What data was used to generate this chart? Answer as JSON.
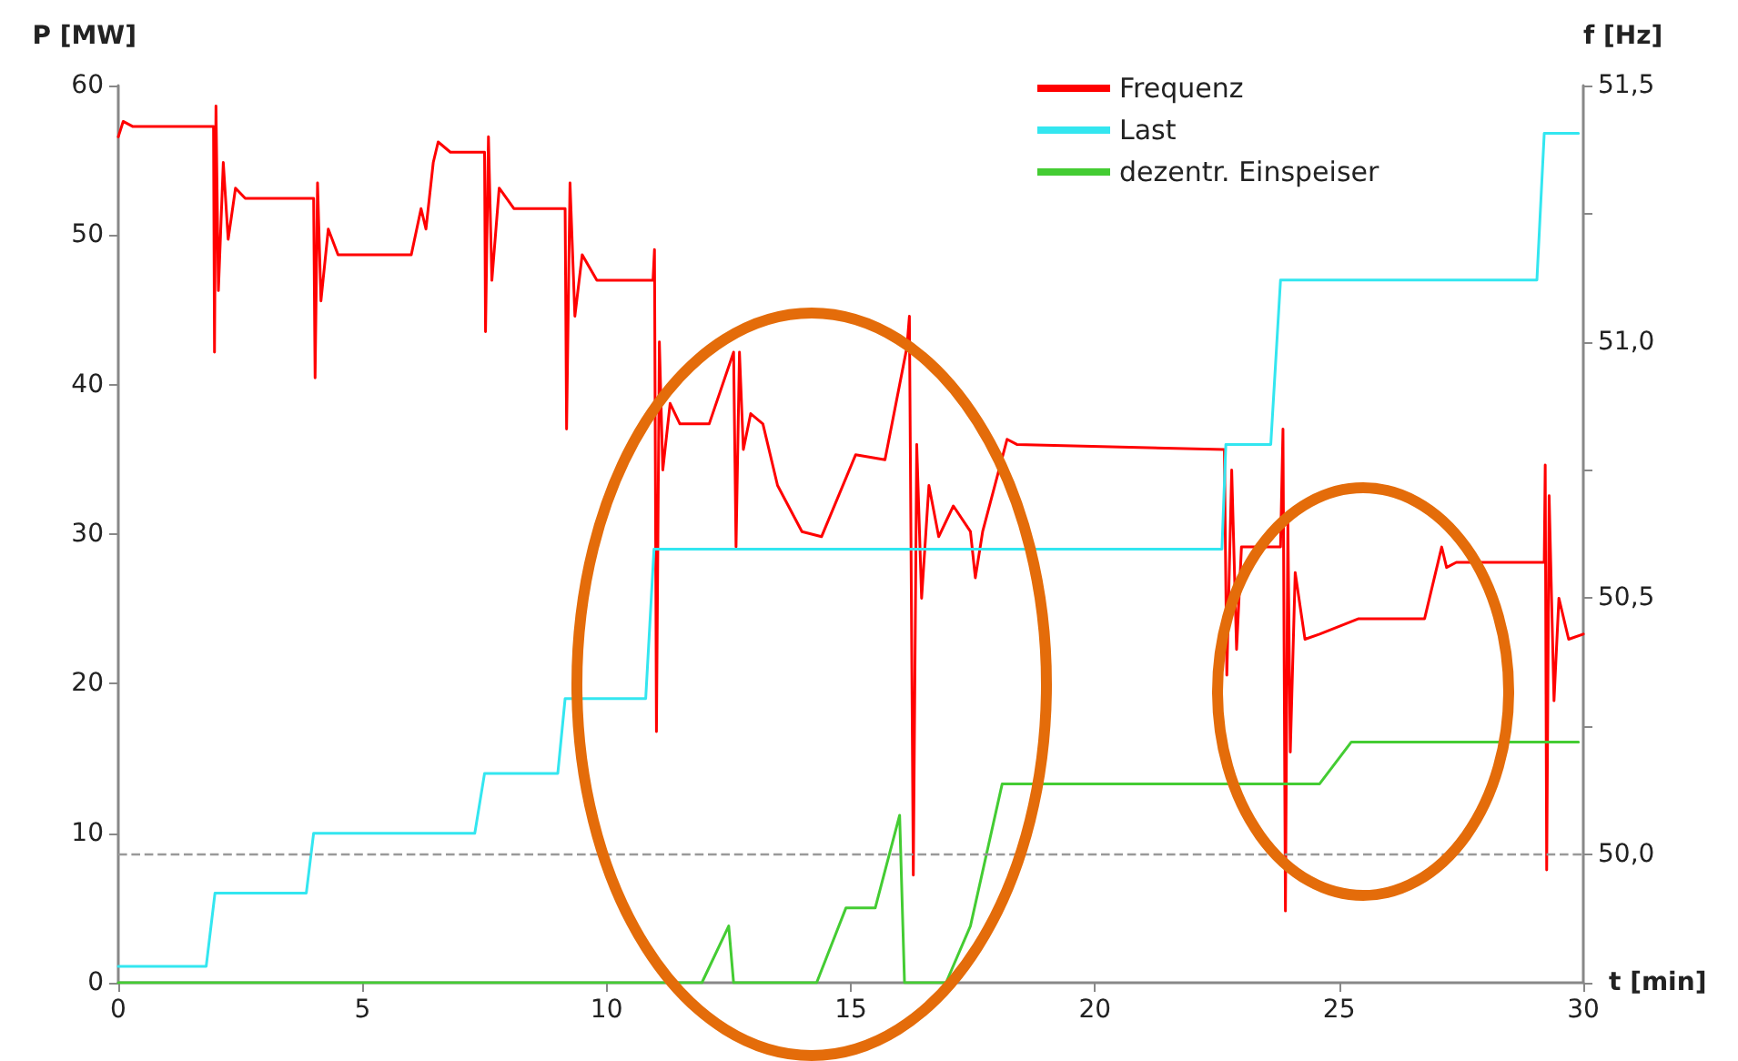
{
  "chart_data": {
    "type": "line",
    "xlabel": "t [min]",
    "ylabel": "P [MW]",
    "y2label": "f [Hz]",
    "xlim": [
      0,
      30
    ],
    "xticks": [
      0,
      5,
      10,
      15,
      20,
      25,
      30
    ],
    "ylim": [
      0,
      60
    ],
    "yticks": [
      0,
      10,
      20,
      30,
      40,
      50,
      60
    ],
    "y2lim": [
      49.75,
      51.5
    ],
    "y2ticks": [
      {
        "value": 49.75,
        "label": null
      },
      {
        "value": 50,
        "label": "50,0"
      },
      {
        "value": 50.25,
        "label": null
      },
      {
        "value": 50.5,
        "label": "50,5"
      },
      {
        "value": 50.75,
        "label": null
      },
      {
        "value": 51,
        "label": "51,0"
      },
      {
        "value": 51.25,
        "label": null
      },
      {
        "value": 51.5,
        "label": "51,5"
      }
    ],
    "ref_lines": [
      {
        "axis": "y2",
        "value": 50,
        "color": "#999999",
        "line_style": "dashed"
      }
    ],
    "legend": "top right",
    "grid": false,
    "marker": "none",
    "line_style": "solid",
    "series": [
      {
        "name": "Frequenz",
        "color": "#ff0000",
        "axis": "y2",
        "x": [
          0,
          0.1,
          0.3,
          1.95,
          1.97,
          2.0,
          2.05,
          2.15,
          2.25,
          2.4,
          2.6,
          4.0,
          4.03,
          4.08,
          4.15,
          4.3,
          4.5,
          6.0,
          6.2,
          6.3,
          6.45,
          6.55,
          6.8,
          7.5,
          7.52,
          7.58,
          7.65,
          7.8,
          8.1,
          9.15,
          9.18,
          9.25,
          9.35,
          9.5,
          9.8,
          10.95,
          10.98,
          11.02,
          11.08,
          11.15,
          11.3,
          11.5,
          12.1,
          12.6,
          12.65,
          12.72,
          12.8,
          12.95,
          13.2,
          13.5,
          14.0,
          14.4,
          15.1,
          15.7,
          16.15,
          16.2,
          16.28,
          16.35,
          16.45,
          16.6,
          16.8,
          17.1,
          17.45,
          17.55,
          17.7,
          18.2,
          18.4,
          22.65,
          22.7,
          22.8,
          22.9,
          23.0,
          23.8,
          23.85,
          23.9,
          23.95,
          24.0,
          24.1,
          24.3,
          24.6,
          25.4,
          26.75,
          27.1,
          27.2,
          27.4,
          29.2,
          29.22,
          29.25,
          29.3,
          29.4,
          29.5,
          29.7,
          30
        ],
        "values": [
          51.4,
          51.43,
          51.42,
          51.42,
          50.98,
          51.46,
          51.1,
          51.35,
          51.2,
          51.3,
          51.28,
          51.28,
          50.93,
          51.31,
          51.08,
          51.22,
          51.17,
          51.17,
          51.26,
          51.22,
          51.35,
          51.39,
          51.37,
          51.37,
          51.02,
          51.4,
          51.12,
          51.3,
          51.26,
          51.26,
          50.83,
          51.31,
          51.05,
          51.17,
          51.12,
          51.12,
          51.18,
          50.24,
          51.0,
          50.75,
          50.88,
          50.84,
          50.84,
          50.98,
          50.6,
          50.98,
          50.79,
          50.86,
          50.84,
          50.72,
          50.63,
          50.62,
          50.78,
          50.77,
          50.99,
          51.05,
          49.96,
          50.8,
          50.5,
          50.72,
          50.62,
          50.68,
          50.63,
          50.54,
          50.63,
          50.81,
          50.8,
          50.79,
          50.35,
          50.75,
          50.4,
          50.6,
          50.6,
          50.83,
          49.89,
          50.65,
          50.2,
          50.55,
          50.42,
          50.43,
          50.46,
          50.46,
          50.6,
          50.56,
          50.57,
          50.57,
          50.76,
          49.97,
          50.7,
          50.3,
          50.5,
          50.42,
          50.43
        ]
      },
      {
        "name": "Last",
        "color": "#33e6f0",
        "x": [
          0,
          1.8,
          1.98,
          3.85,
          4.0,
          7.3,
          7.5,
          9.0,
          9.15,
          10.8,
          10.97,
          22.6,
          22.68,
          23.6,
          23.8,
          29.05,
          29.2,
          29.9
        ],
        "values": [
          1.1,
          1.1,
          6,
          6,
          10,
          10,
          14,
          14,
          19,
          19,
          29,
          29,
          36,
          36,
          47,
          47,
          56.8,
          56.8
        ]
      },
      {
        "name": "dezentr. Einspeiser",
        "color": "#44cc33",
        "x": [
          0,
          11.95,
          12.5,
          12.6,
          14.3,
          14.9,
          15.5,
          16.0,
          16.1,
          16.95,
          17.45,
          18.1,
          24.6,
          25.25,
          29.9
        ],
        "values": [
          0,
          0,
          3.8,
          0,
          0,
          5,
          5,
          11.2,
          0,
          0,
          3.8,
          13.3,
          13.3,
          16.1,
          16.1
        ]
      }
    ]
  }
}
